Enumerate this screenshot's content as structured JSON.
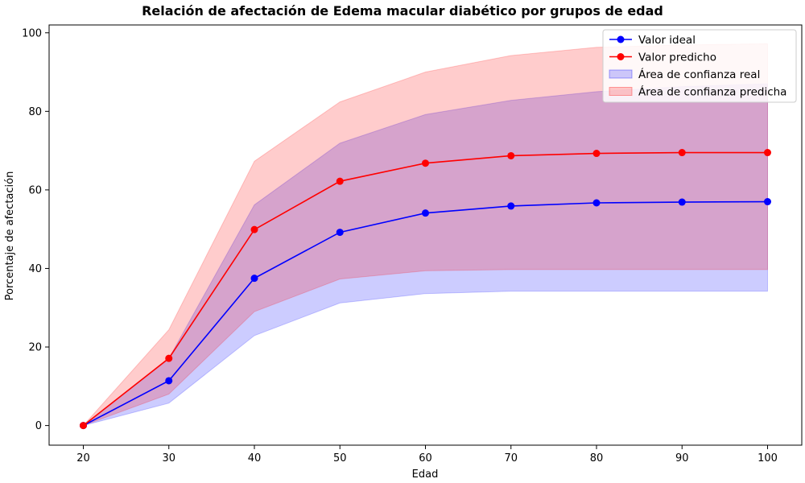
{
  "chart_data": {
    "type": "line",
    "title": "Relación de afectación de Edema macular diabético por grupos de edad",
    "xlabel": "Edad",
    "ylabel": "Porcentaje de afectación",
    "x": [
      20,
      30,
      40,
      50,
      60,
      70,
      80,
      90,
      100
    ],
    "xlim": [
      16,
      104
    ],
    "ylim": [
      -5,
      102
    ],
    "xticks": [
      20,
      30,
      40,
      50,
      60,
      70,
      80,
      90,
      100
    ],
    "yticks": [
      0,
      20,
      40,
      60,
      80,
      100
    ],
    "grid": false,
    "legend_position": "top-right",
    "series": [
      {
        "name": "Valor ideal",
        "color": "#0000ff",
        "marker": "circle",
        "values": [
          0,
          11.4,
          37.5,
          49.2,
          54.1,
          55.9,
          56.7,
          56.9,
          57.0
        ]
      },
      {
        "name": "Valor predicho",
        "color": "#ff0000",
        "marker": "circle",
        "values": [
          0,
          17.1,
          49.9,
          62.2,
          66.8,
          68.7,
          69.3,
          69.5,
          69.5
        ]
      }
    ],
    "bands": [
      {
        "name": "Área de confianza real",
        "color": "#0000ff",
        "opacity": 0.2,
        "lower": [
          0,
          5.7,
          22.9,
          31.2,
          33.6,
          34.2,
          34.2,
          34.2,
          34.2
        ],
        "upper": [
          0,
          17.1,
          56.2,
          71.9,
          79.2,
          82.8,
          85.0,
          86.3,
          87.0
        ]
      },
      {
        "name": "Área de confianza predicha",
        "color": "#ff0000",
        "opacity": 0.2,
        "lower": [
          0,
          8.0,
          29.0,
          37.3,
          39.4,
          39.7,
          39.7,
          39.7,
          39.7
        ],
        "upper": [
          0,
          24.4,
          67.3,
          82.4,
          90.0,
          94.2,
          96.3,
          96.9,
          97.2
        ]
      }
    ]
  }
}
